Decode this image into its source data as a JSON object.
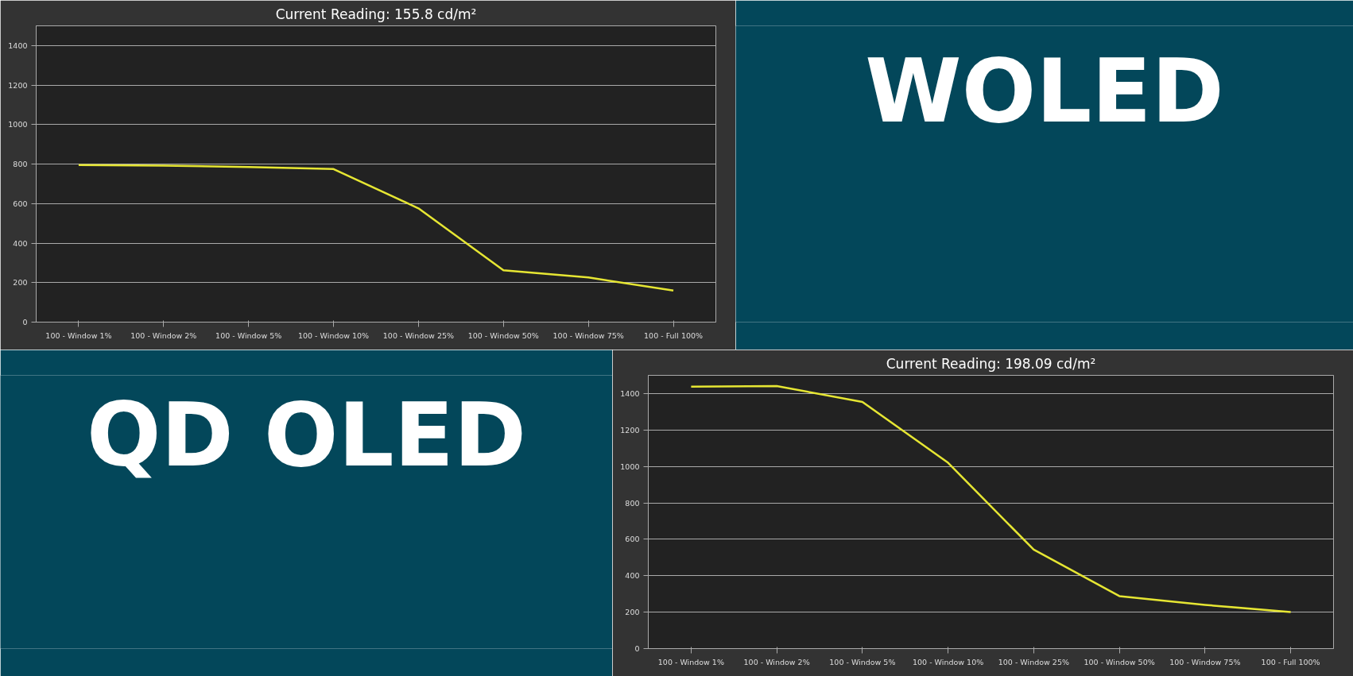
{
  "chart_data": [
    {
      "type": "line",
      "title": "Current Reading: 155.8 cd/m²",
      "categories": [
        "100 - Window 1%",
        "100 - Window 2%",
        "100 - Window 5%",
        "100 - Window 10%",
        "100 - Window 25%",
        "100 - Window 50%",
        "100 - Window 75%",
        "100 - Full 100%"
      ],
      "series": [
        {
          "color": "#e6e633",
          "values": [
            795,
            792,
            785,
            775,
            576,
            262,
            226,
            160
          ]
        }
      ],
      "ylim": [
        0,
        1500
      ],
      "yticks": [
        0,
        200,
        400,
        600,
        800,
        1000,
        1200,
        1400
      ],
      "grid": "y"
    },
    {
      "type": "other",
      "title": "WOLED"
    },
    {
      "type": "other",
      "title": "QD OLED"
    },
    {
      "type": "line",
      "title": "Current Reading: 198.09 cd/m²",
      "categories": [
        "100 - Window 1%",
        "100 - Window 2%",
        "100 - Window 5%",
        "100 - Window 10%",
        "100 - Window 25%",
        "100 - Window 50%",
        "100 - Window 75%",
        "100 - Full 100%"
      ],
      "series": [
        {
          "color": "#e6e633",
          "values": [
            1438,
            1441,
            1354,
            1020,
            543,
            288,
            240,
            201
          ]
        }
      ],
      "ylim": [
        0,
        1500
      ],
      "yticks": [
        0,
        200,
        400,
        600,
        800,
        1000,
        1200,
        1400
      ],
      "grid": "y"
    }
  ]
}
